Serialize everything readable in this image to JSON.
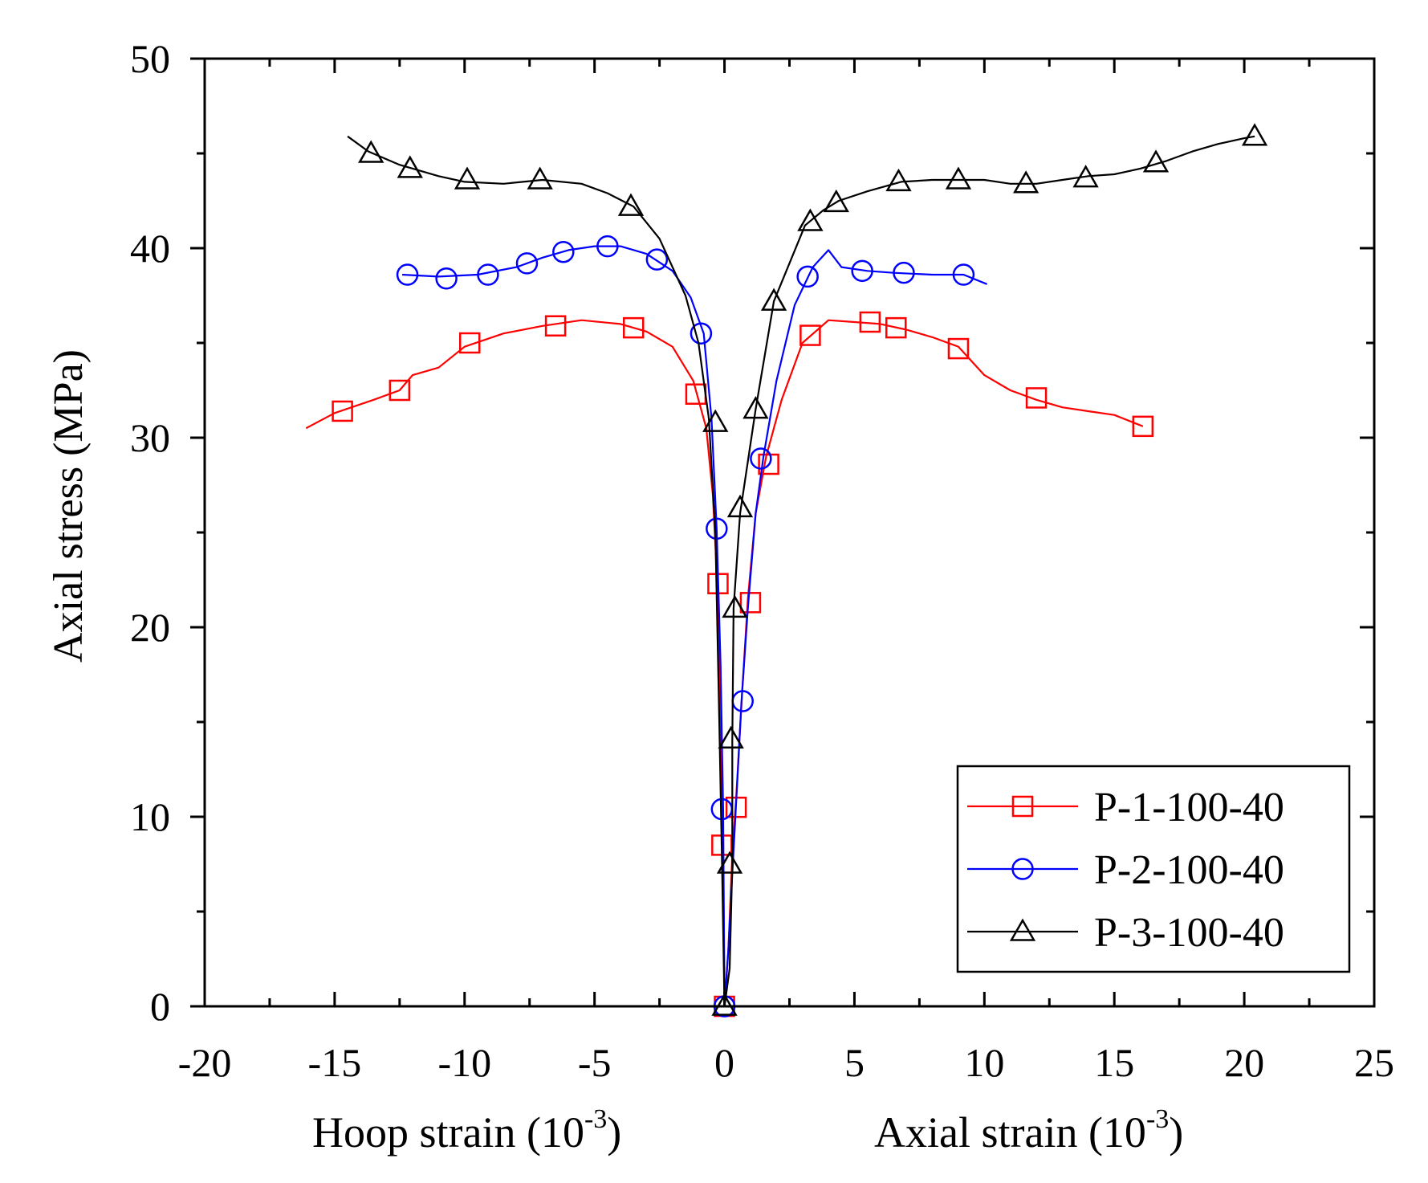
{
  "chart_data": {
    "type": "line",
    "ylabel": "Axial stress (MPa)",
    "xlabel_left": {
      "base": "Hoop strain (10",
      "exp": "-3",
      "close": ")"
    },
    "xlabel_right": {
      "base": "Axial strain (10",
      "exp": "-3",
      "close": ")"
    },
    "xlim": [
      -20,
      25
    ],
    "ylim": [
      0,
      50
    ],
    "x_ticks": [
      -20,
      -15,
      -10,
      -5,
      0,
      5,
      10,
      15,
      20,
      25
    ],
    "x_tick_labels": [
      "-20",
      "-15",
      "-10",
      "-5",
      "0",
      "5",
      "10",
      "15",
      "20",
      "25"
    ],
    "y_ticks": [
      0,
      10,
      20,
      30,
      40,
      50
    ],
    "y_tick_labels": [
      "0",
      "10",
      "20",
      "30",
      "40",
      "50"
    ],
    "legend_position": "bottom-right",
    "series": [
      {
        "name": "P-1-100-40",
        "color": "#ff0000",
        "marker": "square",
        "line": [
          [
            -16.1,
            30.5
          ],
          [
            -15,
            31.3
          ],
          [
            -13.5,
            32
          ],
          [
            -12.5,
            32.5
          ],
          [
            -12,
            33.3
          ],
          [
            -11,
            33.7
          ],
          [
            -10,
            34.8
          ],
          [
            -8.5,
            35.5
          ],
          [
            -7,
            35.9
          ],
          [
            -5.5,
            36.2
          ],
          [
            -4,
            36
          ],
          [
            -3,
            35.6
          ],
          [
            -2,
            34.8
          ],
          [
            -1.2,
            33
          ],
          [
            -0.7,
            30.5
          ],
          [
            -0.45,
            27
          ],
          [
            -0.3,
            23
          ],
          [
            -0.2,
            18
          ],
          [
            -0.12,
            12
          ],
          [
            -0.05,
            8
          ],
          [
            0,
            0
          ],
          [
            0.15,
            3
          ],
          [
            0.3,
            8
          ],
          [
            0.45,
            11
          ],
          [
            0.7,
            17
          ],
          [
            0.9,
            21.5
          ],
          [
            1.2,
            26
          ],
          [
            1.6,
            29
          ],
          [
            2.2,
            32
          ],
          [
            3,
            35
          ],
          [
            4,
            36.2
          ],
          [
            5,
            36.1
          ],
          [
            6,
            36
          ],
          [
            7,
            35.7
          ],
          [
            8,
            35.3
          ],
          [
            9,
            34.8
          ],
          [
            10,
            33.3
          ],
          [
            11,
            32.5
          ],
          [
            12,
            32
          ],
          [
            13,
            31.6
          ],
          [
            14,
            31.4
          ],
          [
            15,
            31.2
          ],
          [
            16.1,
            30.6
          ]
        ],
        "markers": [
          [
            -14.7,
            31.4
          ],
          [
            -12.5,
            32.5
          ],
          [
            -9.8,
            35
          ],
          [
            -6.5,
            35.9
          ],
          [
            -3.5,
            35.8
          ],
          [
            -1.1,
            32.3
          ],
          [
            -0.25,
            22.3
          ],
          [
            -0.1,
            8.5
          ],
          [
            0,
            0
          ],
          [
            0.45,
            10.5
          ],
          [
            1,
            21.3
          ],
          [
            1.7,
            28.6
          ],
          [
            3.3,
            35.4
          ],
          [
            5.6,
            36.1
          ],
          [
            6.6,
            35.8
          ],
          [
            9,
            34.7
          ],
          [
            12,
            32.1
          ],
          [
            16.1,
            30.6
          ]
        ]
      },
      {
        "name": "P-2-100-40",
        "color": "#0000ff",
        "marker": "circle",
        "line": [
          [
            -12.4,
            38.6
          ],
          [
            -11,
            38.5
          ],
          [
            -9.5,
            38.6
          ],
          [
            -8,
            39
          ],
          [
            -7,
            39.5
          ],
          [
            -6,
            39.9
          ],
          [
            -5,
            40.1
          ],
          [
            -4,
            40.1
          ],
          [
            -3,
            39.7
          ],
          [
            -2,
            38.8
          ],
          [
            -1.3,
            37.4
          ],
          [
            -0.8,
            35.5
          ],
          [
            -0.5,
            31
          ],
          [
            -0.3,
            25.2
          ],
          [
            -0.15,
            18
          ],
          [
            -0.05,
            10.4
          ],
          [
            0,
            0
          ],
          [
            0.15,
            3
          ],
          [
            0.3,
            7
          ],
          [
            0.5,
            12
          ],
          [
            0.65,
            16
          ],
          [
            0.9,
            21
          ],
          [
            1.2,
            26
          ],
          [
            1.5,
            29
          ],
          [
            2,
            33
          ],
          [
            2.7,
            37
          ],
          [
            3.4,
            39
          ],
          [
            4,
            39.9
          ],
          [
            4.5,
            39
          ],
          [
            5.5,
            38.8
          ],
          [
            6.5,
            38.7
          ],
          [
            8,
            38.6
          ],
          [
            9.2,
            38.6
          ],
          [
            10.1,
            38.1
          ]
        ],
        "markers": [
          [
            -12.2,
            38.6
          ],
          [
            -10.7,
            38.4
          ],
          [
            -9.1,
            38.6
          ],
          [
            -7.6,
            39.2
          ],
          [
            -6.2,
            39.8
          ],
          [
            -4.5,
            40.1
          ],
          [
            -2.6,
            39.4
          ],
          [
            -0.9,
            35.5
          ],
          [
            -0.3,
            25.2
          ],
          [
            -0.1,
            10.4
          ],
          [
            0,
            0
          ],
          [
            0.7,
            16.1
          ],
          [
            1.4,
            28.9
          ],
          [
            3.2,
            38.5
          ],
          [
            5.3,
            38.8
          ],
          [
            6.9,
            38.7
          ],
          [
            9.2,
            38.6
          ]
        ]
      },
      {
        "name": "P-3-100-40",
        "color": "#000000",
        "marker": "triangle",
        "line": [
          [
            -14.5,
            45.9
          ],
          [
            -13.7,
            45.1
          ],
          [
            -12.5,
            44.4
          ],
          [
            -11,
            43.8
          ],
          [
            -10,
            43.5
          ],
          [
            -8.5,
            43.4
          ],
          [
            -7,
            43.6
          ],
          [
            -5.5,
            43.4
          ],
          [
            -4.5,
            42.9
          ],
          [
            -3.5,
            42.2
          ],
          [
            -2.5,
            40.5
          ],
          [
            -1.5,
            37.5
          ],
          [
            -1,
            35
          ],
          [
            -0.6,
            31
          ],
          [
            -0.35,
            25
          ],
          [
            -0.2,
            15
          ],
          [
            -0.1,
            8
          ],
          [
            0,
            0
          ],
          [
            0.2,
            2
          ],
          [
            0.3,
            7.5
          ],
          [
            0.3,
            14
          ],
          [
            0.35,
            21
          ],
          [
            0.6,
            26
          ],
          [
            1.2,
            31.5
          ],
          [
            1.9,
            37.2
          ],
          [
            3.1,
            41.2
          ],
          [
            3.8,
            42
          ],
          [
            4.4,
            42.5
          ],
          [
            5.5,
            43
          ],
          [
            6.8,
            43.5
          ],
          [
            8,
            43.6
          ],
          [
            9,
            43.6
          ],
          [
            10,
            43.6
          ],
          [
            11,
            43.4
          ],
          [
            12,
            43.4
          ],
          [
            13,
            43.6
          ],
          [
            14,
            43.8
          ],
          [
            15,
            43.9
          ],
          [
            16,
            44.2
          ],
          [
            17,
            44.6
          ],
          [
            18,
            45.1
          ],
          [
            19,
            45.5
          ],
          [
            20,
            45.8
          ],
          [
            20.4,
            45.9
          ]
        ],
        "markers": [
          [
            -13.6,
            45
          ],
          [
            -12.1,
            44.2
          ],
          [
            -9.9,
            43.6
          ],
          [
            -7.1,
            43.6
          ],
          [
            -3.6,
            42.2
          ],
          [
            -0.35,
            30.8
          ],
          [
            0,
            0
          ],
          [
            0.2,
            7.5
          ],
          [
            0.25,
            14.1
          ],
          [
            0.4,
            21
          ],
          [
            0.6,
            26.3
          ],
          [
            1.2,
            31.5
          ],
          [
            1.9,
            37.2
          ],
          [
            3.3,
            41.4
          ],
          [
            4.3,
            42.4
          ],
          [
            6.7,
            43.5
          ],
          [
            9,
            43.6
          ],
          [
            11.6,
            43.4
          ],
          [
            13.9,
            43.7
          ],
          [
            16.6,
            44.5
          ],
          [
            20.4,
            45.9
          ]
        ]
      }
    ]
  }
}
